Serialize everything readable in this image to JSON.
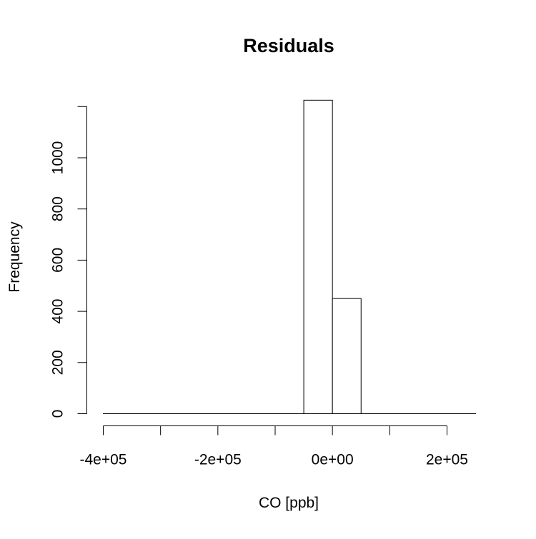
{
  "chart_data": {
    "type": "bar",
    "title": "Residuals",
    "xlabel": "CO [ppb]",
    "ylabel": "Frequency",
    "x_ticks": [
      -400000,
      -300000,
      -200000,
      -100000,
      0,
      100000,
      200000
    ],
    "x_tick_labels": [
      "-4e+05",
      "",
      "-2e+05",
      "",
      "0e+00",
      "",
      "2e+05"
    ],
    "y_ticks": [
      0,
      200,
      400,
      600,
      800,
      1000
    ],
    "y_tick_labels": [
      "0",
      "200",
      "400",
      "600",
      "800",
      "1000"
    ],
    "bins": [
      {
        "from": -400000,
        "to": -350000,
        "count": 0
      },
      {
        "from": -350000,
        "to": -300000,
        "count": 0
      },
      {
        "from": -300000,
        "to": -250000,
        "count": 0
      },
      {
        "from": -250000,
        "to": -200000,
        "count": 0
      },
      {
        "from": -200000,
        "to": -150000,
        "count": 0
      },
      {
        "from": -150000,
        "to": -100000,
        "count": 0
      },
      {
        "from": -100000,
        "to": -50000,
        "count": 0
      },
      {
        "from": -50000,
        "to": 0,
        "count": 1225
      },
      {
        "from": 0,
        "to": 50000,
        "count": 450
      },
      {
        "from": 50000,
        "to": 100000,
        "count": 0
      },
      {
        "from": 100000,
        "to": 150000,
        "count": 0
      },
      {
        "from": 150000,
        "to": 200000,
        "count": 0
      },
      {
        "from": 200000,
        "to": 250000,
        "count": 0
      }
    ],
    "xlim": [
      -400000,
      250000
    ],
    "ylim": [
      0,
      1200
    ],
    "grid": false,
    "bar_fill": "#ffffff",
    "bar_stroke": "#000000"
  }
}
